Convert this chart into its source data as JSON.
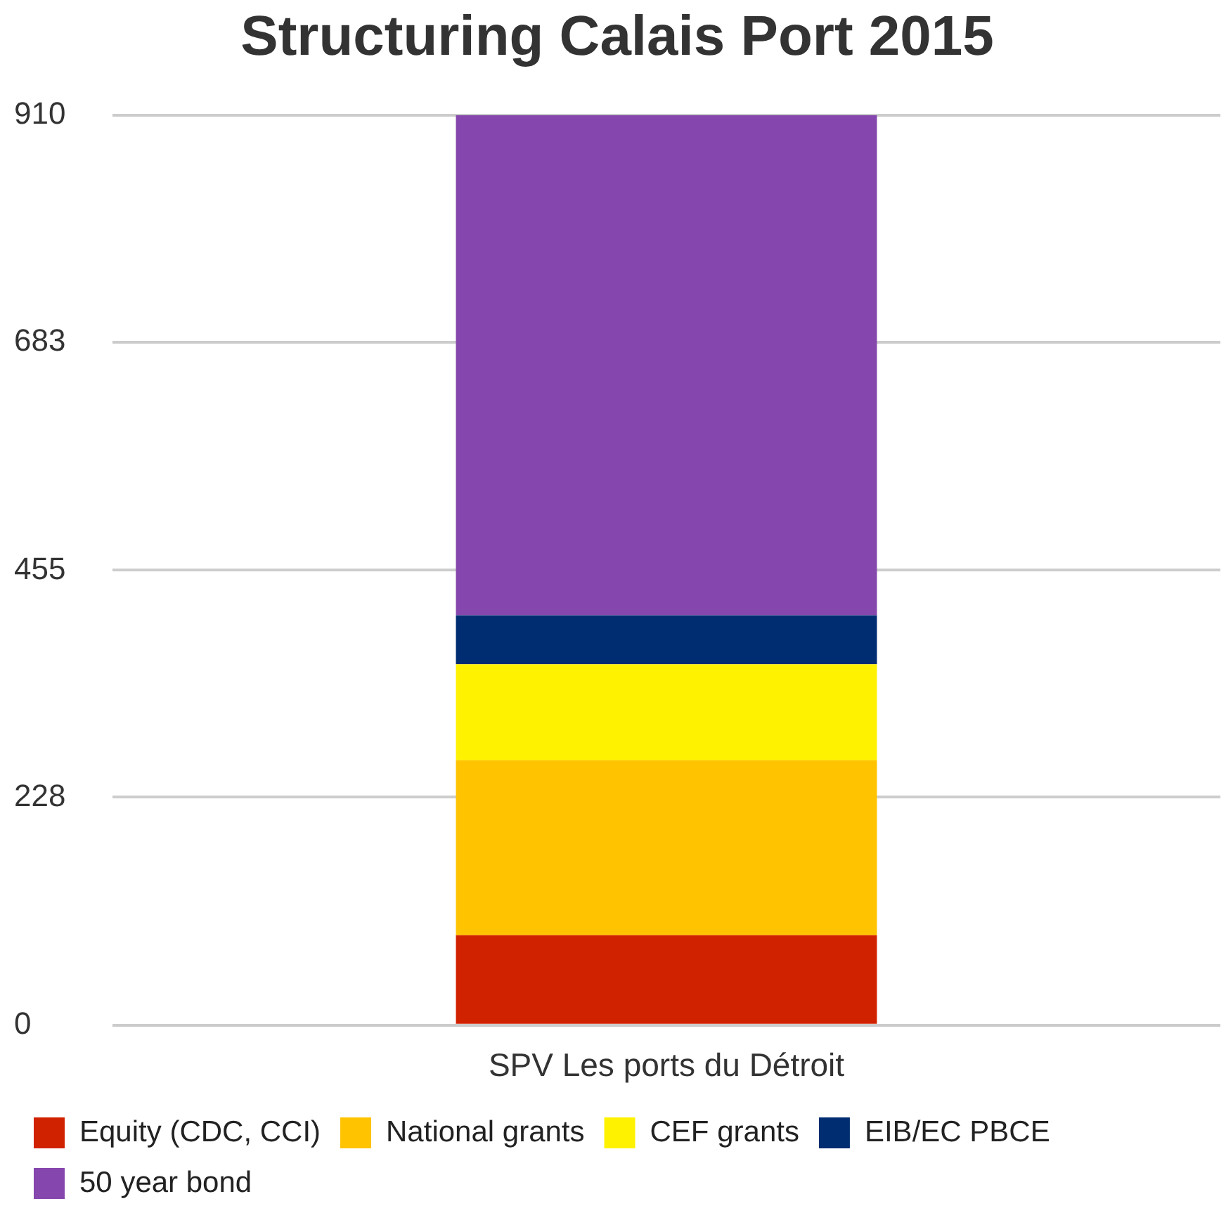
{
  "chart_data": {
    "type": "bar",
    "title": "Structuring Calais Port 2015",
    "categories": [
      "SPV Les ports du Détroit"
    ],
    "stacked": true,
    "series": [
      {
        "name": "Equity (CDC, CCI)",
        "color": "#d12200",
        "values": [
          90
        ]
      },
      {
        "name": "National grants",
        "color": "#ffc300",
        "values": [
          175
        ]
      },
      {
        "name": "CEF grants",
        "color": "#fff200",
        "values": [
          96
        ]
      },
      {
        "name": "EIB/EC PBCE",
        "color": "#002d72",
        "values": [
          49
        ]
      },
      {
        "name": "50 year bond",
        "color": "#8546ad",
        "values": [
          500
        ]
      }
    ],
    "ylim": [
      0,
      910
    ],
    "yticks": [
      0,
      228,
      455,
      683,
      910
    ],
    "grid": "y",
    "legend": "bottom"
  }
}
